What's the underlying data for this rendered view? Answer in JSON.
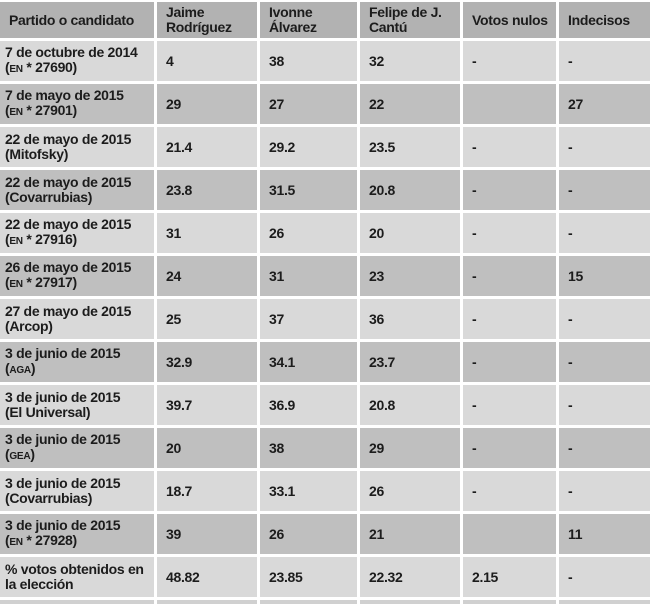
{
  "chart_data": {
    "type": "table",
    "columns": [
      "Partido o candidato",
      "Jaime Rodríguez",
      "Ivonne Álvarez",
      "Felipe de J. Cantú",
      "Votos nulos",
      "Indecisos"
    ],
    "rows": [
      {
        "date": "7 de octubre de 2014",
        "source": "(EN * 27690)",
        "values": [
          "4",
          "38",
          "32",
          "-",
          "-"
        ]
      },
      {
        "date": "7 de mayo de 2015",
        "source": "(EN * 27901)",
        "values": [
          "29",
          "27",
          "22",
          "",
          "27"
        ]
      },
      {
        "date": "22 de mayo de 2015",
        "source": "(Mitofsky)",
        "values": [
          "21.4",
          "29.2",
          "23.5",
          "-",
          "-"
        ]
      },
      {
        "date": "22 de mayo de 2015",
        "source": "(Covarrubias)",
        "values": [
          "23.8",
          "31.5",
          "20.8",
          "-",
          "-"
        ]
      },
      {
        "date": "22 de mayo de 2015",
        "source": "(EN * 27916)",
        "values": [
          "31",
          "26",
          "20",
          "-",
          "-"
        ]
      },
      {
        "date": "26 de mayo de 2015",
        "source": "(EN * 27917)",
        "values": [
          "24",
          "31",
          "23",
          "-",
          "15"
        ]
      },
      {
        "date": "27 de mayo de 2015",
        "source": "(Arcop)",
        "values": [
          "25",
          "37",
          "36",
          "-",
          "-"
        ]
      },
      {
        "date": "3 de junio de 2015",
        "source": "(AGA)",
        "values": [
          "32.9",
          "34.1",
          "23.7",
          "-",
          "-"
        ]
      },
      {
        "date": "3 de junio de 2015",
        "source": "(El Universal)",
        "values": [
          "39.7",
          "36.9",
          "20.8",
          "-",
          "-"
        ]
      },
      {
        "date": "3 de junio de 2015",
        "source": "(GEA)",
        "values": [
          "20",
          "38",
          "29",
          "-",
          "-"
        ]
      },
      {
        "date": "3 de junio de 2015",
        "source": "(Covarrubias)",
        "values": [
          "18.7",
          "33.1",
          "26",
          "-",
          "-"
        ]
      },
      {
        "date": "3 de junio de 2015",
        "source": "(EN * 27928)",
        "values": [
          "39",
          "26",
          "21",
          "",
          "11"
        ]
      },
      {
        "date": "% votos obtenidos en la elección",
        "source": "",
        "values": [
          "48.82",
          "23.85",
          "22.32",
          "2.15",
          "-"
        ]
      }
    ]
  },
  "colors": {
    "header_bg": "#b2b2b2",
    "row_light": "#d9d9d9",
    "row_dark": "#bfbfbf",
    "partial_row": "#d0d0d0",
    "text": "#1c1c1c",
    "background": "#ffffff"
  }
}
